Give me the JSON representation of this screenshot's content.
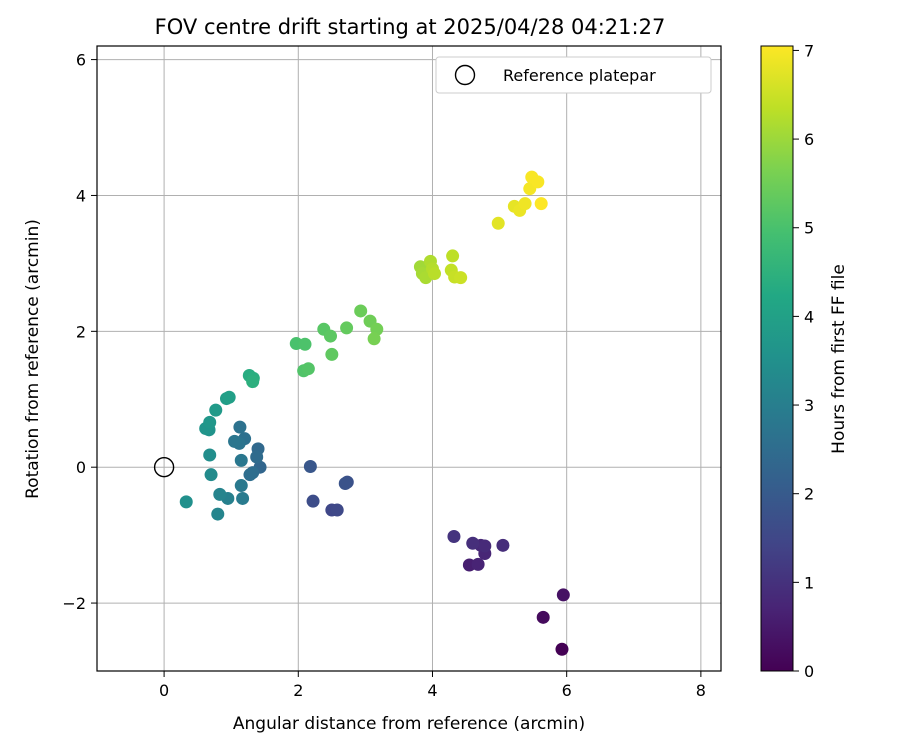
{
  "chart_data": {
    "type": "scatter",
    "title": "FOV centre drift starting at 2025/04/28 04:21:27",
    "xlabel": "Angular distance from reference (arcmin)",
    "ylabel": "Rotation from reference (arcmin)",
    "xlim": [
      -1.0,
      8.3
    ],
    "ylim": [
      -3.0,
      6.2
    ],
    "xticks": [
      0,
      2,
      4,
      6,
      8
    ],
    "yticks": [
      -2,
      0,
      2,
      4,
      6
    ],
    "xtick_labels": [
      "0",
      "2",
      "4",
      "6",
      "8"
    ],
    "ytick_labels": [
      "−2",
      "0",
      "2",
      "4",
      "6"
    ],
    "grid": true,
    "legend": {
      "position": "top-right",
      "entries": [
        "Reference platepar"
      ]
    },
    "reference_point": {
      "x": 0,
      "y": 0
    },
    "colorbar": {
      "label": "Hours from first FF file",
      "colormap": "viridis",
      "range": [
        0,
        7.05
      ],
      "ticks": [
        0,
        1,
        2,
        3,
        4,
        5,
        6,
        7
      ],
      "tick_labels": [
        "0",
        "1",
        "2",
        "3",
        "4",
        "5",
        "6",
        "7"
      ]
    },
    "points": [
      {
        "x": 5.93,
        "y": -2.68,
        "c": 0.0
      },
      {
        "x": 5.65,
        "y": -2.21,
        "c": 0.2
      },
      {
        "x": 5.95,
        "y": -1.88,
        "c": 0.35
      },
      {
        "x": 4.55,
        "y": -1.44,
        "c": 0.6
      },
      {
        "x": 4.68,
        "y": -1.43,
        "c": 0.7
      },
      {
        "x": 4.78,
        "y": -1.27,
        "c": 0.75
      },
      {
        "x": 4.72,
        "y": -1.15,
        "c": 0.8
      },
      {
        "x": 4.78,
        "y": -1.16,
        "c": 0.85
      },
      {
        "x": 5.05,
        "y": -1.15,
        "c": 0.9
      },
      {
        "x": 4.6,
        "y": -1.12,
        "c": 0.95
      },
      {
        "x": 4.32,
        "y": -1.02,
        "c": 1.05
      },
      {
        "x": 2.5,
        "y": -0.63,
        "c": 1.5
      },
      {
        "x": 2.58,
        "y": -0.63,
        "c": 1.55
      },
      {
        "x": 2.22,
        "y": -0.5,
        "c": 1.65
      },
      {
        "x": 2.73,
        "y": -0.22,
        "c": 1.75
      },
      {
        "x": 2.7,
        "y": -0.24,
        "c": 1.8
      },
      {
        "x": 2.18,
        "y": 0.01,
        "c": 1.9
      },
      {
        "x": 1.43,
        "y": 0.0,
        "c": 2.3
      },
      {
        "x": 1.4,
        "y": 0.27,
        "c": 2.4
      },
      {
        "x": 1.38,
        "y": 0.15,
        "c": 2.45
      },
      {
        "x": 1.32,
        "y": -0.08,
        "c": 2.5
      },
      {
        "x": 1.28,
        "y": -0.11,
        "c": 2.55
      },
      {
        "x": 1.2,
        "y": 0.42,
        "c": 2.6
      },
      {
        "x": 1.13,
        "y": 0.59,
        "c": 2.65
      },
      {
        "x": 1.12,
        "y": 0.35,
        "c": 2.7
      },
      {
        "x": 1.05,
        "y": 0.38,
        "c": 2.75
      },
      {
        "x": 1.15,
        "y": 0.1,
        "c": 2.8
      },
      {
        "x": 1.15,
        "y": -0.27,
        "c": 2.85
      },
      {
        "x": 1.17,
        "y": -0.46,
        "c": 2.9
      },
      {
        "x": 0.95,
        "y": -0.46,
        "c": 3.05
      },
      {
        "x": 0.83,
        "y": -0.4,
        "c": 3.15
      },
      {
        "x": 0.8,
        "y": -0.69,
        "c": 3.2
      },
      {
        "x": 0.7,
        "y": -0.11,
        "c": 3.35
      },
      {
        "x": 0.68,
        "y": 0.18,
        "c": 3.45
      },
      {
        "x": 0.33,
        "y": -0.51,
        "c": 3.5
      },
      {
        "x": 0.67,
        "y": 0.55,
        "c": 3.6
      },
      {
        "x": 0.62,
        "y": 0.57,
        "c": 3.65
      },
      {
        "x": 0.68,
        "y": 0.66,
        "c": 3.7
      },
      {
        "x": 0.77,
        "y": 0.84,
        "c": 3.8
      },
      {
        "x": 0.93,
        "y": 1.01,
        "c": 3.9
      },
      {
        "x": 0.97,
        "y": 1.03,
        "c": 3.95
      },
      {
        "x": 1.27,
        "y": 1.35,
        "c": 4.35
      },
      {
        "x": 1.33,
        "y": 1.31,
        "c": 4.4
      },
      {
        "x": 1.32,
        "y": 1.26,
        "c": 4.45
      },
      {
        "x": 1.97,
        "y": 1.82,
        "c": 5.0
      },
      {
        "x": 2.1,
        "y": 1.81,
        "c": 5.05
      },
      {
        "x": 2.08,
        "y": 1.42,
        "c": 5.1
      },
      {
        "x": 2.15,
        "y": 1.45,
        "c": 5.15
      },
      {
        "x": 2.38,
        "y": 2.03,
        "c": 5.2
      },
      {
        "x": 2.48,
        "y": 1.93,
        "c": 5.25
      },
      {
        "x": 2.5,
        "y": 1.66,
        "c": 5.3
      },
      {
        "x": 2.72,
        "y": 2.05,
        "c": 5.35
      },
      {
        "x": 2.93,
        "y": 2.3,
        "c": 5.45
      },
      {
        "x": 3.07,
        "y": 2.15,
        "c": 5.5
      },
      {
        "x": 3.17,
        "y": 2.03,
        "c": 5.55
      },
      {
        "x": 3.13,
        "y": 1.89,
        "c": 5.6
      },
      {
        "x": 3.82,
        "y": 2.95,
        "c": 6.05
      },
      {
        "x": 3.85,
        "y": 2.85,
        "c": 6.1
      },
      {
        "x": 3.9,
        "y": 2.79,
        "c": 6.15
      },
      {
        "x": 3.97,
        "y": 3.03,
        "c": 6.2
      },
      {
        "x": 4.0,
        "y": 2.92,
        "c": 6.25
      },
      {
        "x": 4.03,
        "y": 2.85,
        "c": 6.3
      },
      {
        "x": 4.3,
        "y": 3.11,
        "c": 6.35
      },
      {
        "x": 4.28,
        "y": 2.9,
        "c": 6.4
      },
      {
        "x": 4.33,
        "y": 2.8,
        "c": 6.45
      },
      {
        "x": 4.42,
        "y": 2.79,
        "c": 6.5
      },
      {
        "x": 4.98,
        "y": 3.59,
        "c": 6.75
      },
      {
        "x": 5.22,
        "y": 3.84,
        "c": 6.8
      },
      {
        "x": 5.3,
        "y": 3.78,
        "c": 6.85
      },
      {
        "x": 5.38,
        "y": 3.88,
        "c": 6.9
      },
      {
        "x": 5.45,
        "y": 4.1,
        "c": 6.95
      },
      {
        "x": 5.48,
        "y": 4.27,
        "c": 7.0
      },
      {
        "x": 5.57,
        "y": 4.2,
        "c": 7.0
      },
      {
        "x": 5.62,
        "y": 3.88,
        "c": 7.05
      }
    ]
  }
}
